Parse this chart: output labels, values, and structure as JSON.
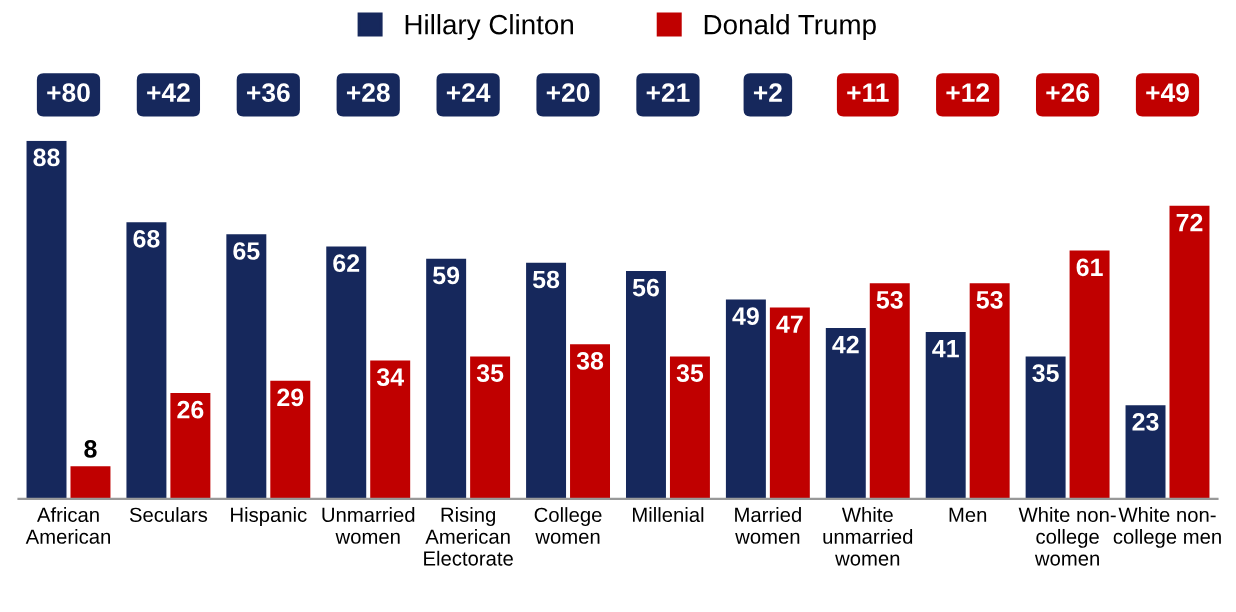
{
  "chart_data": {
    "type": "bar",
    "categories": [
      "African\nAmerican",
      "Seculars",
      "Hispanic",
      "Unmarried\nwomen",
      "Rising\nAmerican\nElectorate",
      "College\nwomen",
      "Millenial",
      "Married\nwomen",
      "White\nunmarried\nwomen",
      "Men",
      "White non-\ncollege\nwomen",
      "White non-\ncollege men"
    ],
    "series": [
      {
        "name": "Hillary Clinton",
        "color": "#16285c",
        "values": [
          88,
          68,
          65,
          62,
          59,
          58,
          56,
          49,
          42,
          41,
          35,
          23
        ]
      },
      {
        "name": "Donald Trump",
        "color": "#c00000",
        "values": [
          8,
          26,
          29,
          34,
          35,
          38,
          35,
          47,
          53,
          53,
          61,
          72
        ]
      }
    ],
    "data_labels": true,
    "legend": "top",
    "annotations": [
      "+80",
      "+42",
      "+36",
      "+28",
      "+24",
      "+20",
      "+21",
      "+2",
      "+11",
      "+12",
      "+26",
      "+49"
    ]
  }
}
